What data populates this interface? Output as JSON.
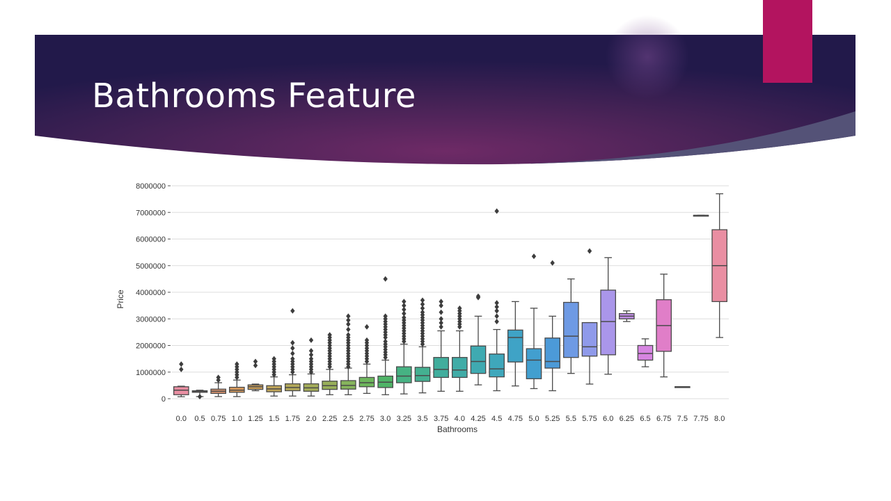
{
  "slide": {
    "title": "Bathrooms Feature",
    "colors": {
      "banner_dark": "#22194a",
      "banner_mid": "#6e2a66",
      "accent": "#b3145f",
      "swoosh": "#545277",
      "grid": "#dddddd",
      "box_edge": "#4a4a4a"
    }
  },
  "chart_data": {
    "type": "box",
    "xlabel": "Bathrooms",
    "ylabel": "Price",
    "ylim": [
      0,
      8000000
    ],
    "yticks": [
      0,
      1000000,
      2000000,
      3000000,
      4000000,
      5000000,
      6000000,
      7000000,
      8000000
    ],
    "grid": true,
    "legend": "none",
    "categories": [
      "0.0",
      "0.5",
      "0.75",
      "1.0",
      "1.25",
      "1.5",
      "1.75",
      "2.0",
      "2.25",
      "2.5",
      "2.75",
      "3.0",
      "3.25",
      "3.5",
      "3.75",
      "4.0",
      "4.25",
      "4.5",
      "4.75",
      "5.0",
      "5.25",
      "5.5",
      "5.75",
      "6.0",
      "6.25",
      "6.5",
      "6.75",
      "7.5",
      "7.75",
      "8.0"
    ],
    "boxes": [
      {
        "category": "0.0",
        "whisker_low": 75000,
        "q1": 150000,
        "median": 320000,
        "q3": 450000,
        "whisker_high": 470000,
        "outliers": [
          1100000,
          1300000
        ],
        "color": "#e98ea2"
      },
      {
        "category": "0.5",
        "whisker_low": 80000,
        "q1": 240000,
        "median": 270000,
        "q3": 300000,
        "whisker_high": 320000,
        "outliers": [
          80000
        ],
        "color": "#e58e8a"
      },
      {
        "category": "0.75",
        "whisker_low": 80000,
        "q1": 200000,
        "median": 280000,
        "q3": 360000,
        "whisker_high": 600000,
        "outliers": [
          700000,
          800000
        ],
        "color": "#dd9570"
      },
      {
        "category": "1.0",
        "whisker_low": 80000,
        "q1": 240000,
        "median": 320000,
        "q3": 430000,
        "whisker_high": 700000,
        "outliers": [
          800000,
          900000,
          1000000,
          1100000,
          1200000,
          1300000
        ],
        "color": "#d89a5c"
      },
      {
        "category": "1.25",
        "whisker_low": 300000,
        "q1": 350000,
        "median": 450000,
        "q3": 520000,
        "whisker_high": 550000,
        "outliers": [
          1250000,
          1400000
        ],
        "color": "#cca05a"
      },
      {
        "category": "1.5",
        "whisker_low": 100000,
        "q1": 260000,
        "median": 370000,
        "q3": 490000,
        "whisker_high": 820000,
        "outliers": [
          900000,
          1000000,
          1100000,
          1200000,
          1300000,
          1400000,
          1500000
        ],
        "color": "#bfa55a"
      },
      {
        "category": "1.75",
        "whisker_low": 100000,
        "q1": 300000,
        "median": 420000,
        "q3": 560000,
        "whisker_high": 900000,
        "outliers": [
          1000000,
          1100000,
          1200000,
          1300000,
          1400000,
          1500000,
          1700000,
          1900000,
          2100000,
          3300000
        ],
        "color": "#b3a95a"
      },
      {
        "category": "2.0",
        "whisker_low": 100000,
        "q1": 280000,
        "median": 410000,
        "q3": 560000,
        "whisker_high": 930000,
        "outliers": [
          1000000,
          1100000,
          1200000,
          1300000,
          1400000,
          1500000,
          1650000,
          1800000,
          2200000
        ],
        "color": "#a5ad5a"
      },
      {
        "category": "2.25",
        "whisker_low": 150000,
        "q1": 350000,
        "median": 490000,
        "q3": 660000,
        "whisker_high": 1100000,
        "outliers": [
          1200000,
          1300000,
          1400000,
          1500000,
          1600000,
          1700000,
          1800000,
          1900000,
          2000000,
          2100000,
          2200000,
          2300000,
          2400000
        ],
        "color": "#98af5a"
      },
      {
        "category": "2.5",
        "whisker_low": 150000,
        "q1": 360000,
        "median": 500000,
        "q3": 680000,
        "whisker_high": 1150000,
        "outliers": [
          1200000,
          1300000,
          1400000,
          1500000,
          1600000,
          1700000,
          1800000,
          1900000,
          2000000,
          2100000,
          2200000,
          2300000,
          2400000,
          2600000,
          2800000,
          2950000,
          3100000
        ],
        "color": "#86b45c"
      },
      {
        "category": "2.75",
        "whisker_low": 200000,
        "q1": 450000,
        "median": 600000,
        "q3": 800000,
        "whisker_high": 1300000,
        "outliers": [
          1400000,
          1500000,
          1600000,
          1700000,
          1800000,
          1900000,
          2000000,
          2100000,
          2200000,
          2700000
        ],
        "color": "#6db65c"
      },
      {
        "category": "3.0",
        "whisker_low": 150000,
        "q1": 420000,
        "median": 620000,
        "q3": 850000,
        "whisker_high": 1450000,
        "outliers": [
          1550000,
          1650000,
          1750000,
          1850000,
          1950000,
          2050000,
          2150000,
          2300000,
          2400000,
          2500000,
          2600000,
          2700000,
          2800000,
          2900000,
          3000000,
          3100000,
          4500000
        ],
        "color": "#4fb467"
      },
      {
        "category": "3.25",
        "whisker_low": 180000,
        "q1": 600000,
        "median": 850000,
        "q3": 1200000,
        "whisker_high": 2050000,
        "outliers": [
          2150000,
          2250000,
          2350000,
          2450000,
          2550000,
          2650000,
          2750000,
          2850000,
          2950000,
          3050000,
          3200000,
          3350000,
          3500000,
          3650000
        ],
        "color": "#46b283"
      },
      {
        "category": "3.5",
        "whisker_low": 220000,
        "q1": 650000,
        "median": 870000,
        "q3": 1180000,
        "whisker_high": 1950000,
        "outliers": [
          2050000,
          2150000,
          2250000,
          2350000,
          2450000,
          2550000,
          2650000,
          2750000,
          2850000,
          2950000,
          3050000,
          3150000,
          3250000,
          3400000,
          3550000,
          3700000
        ],
        "color": "#44b091"
      },
      {
        "category": "3.75",
        "whisker_low": 280000,
        "q1": 800000,
        "median": 1100000,
        "q3": 1550000,
        "whisker_high": 2550000,
        "outliers": [
          2700000,
          2850000,
          3000000,
          3250000,
          3500000,
          3650000
        ],
        "color": "#41ae9d"
      },
      {
        "category": "4.0",
        "whisker_low": 280000,
        "q1": 800000,
        "median": 1080000,
        "q3": 1550000,
        "whisker_high": 2550000,
        "outliers": [
          2700000,
          2800000,
          2900000,
          3000000,
          3100000,
          3200000,
          3300000,
          3400000
        ],
        "color": "#40aca7"
      },
      {
        "category": "4.25",
        "whisker_low": 520000,
        "q1": 950000,
        "median": 1400000,
        "q3": 1980000,
        "whisker_high": 3100000,
        "outliers": [
          3800000,
          3850000
        ],
        "color": "#3faab1"
      },
      {
        "category": "4.5",
        "whisker_low": 300000,
        "q1": 820000,
        "median": 1120000,
        "q3": 1680000,
        "whisker_high": 2600000,
        "outliers": [
          2900000,
          3100000,
          3300000,
          3450000,
          3600000,
          7050000
        ],
        "color": "#3fa7bb"
      },
      {
        "category": "4.75",
        "whisker_low": 480000,
        "q1": 1380000,
        "median": 2300000,
        "q3": 2580000,
        "whisker_high": 3650000,
        "outliers": [],
        "color": "#3fa3c6"
      },
      {
        "category": "5.0",
        "whisker_low": 380000,
        "q1": 750000,
        "median": 1450000,
        "q3": 1880000,
        "whisker_high": 3400000,
        "outliers": [
          5350000
        ],
        "color": "#429fcf"
      },
      {
        "category": "5.25",
        "whisker_low": 300000,
        "q1": 1150000,
        "median": 1400000,
        "q3": 2280000,
        "whisker_high": 3100000,
        "outliers": [
          5100000
        ],
        "color": "#4c9ad8"
      },
      {
        "category": "5.5",
        "whisker_low": 950000,
        "q1": 1550000,
        "median": 2350000,
        "q3": 3620000,
        "whisker_high": 4500000,
        "outliers": [],
        "color": "#6e9ae4"
      },
      {
        "category": "5.75",
        "whisker_low": 550000,
        "q1": 1600000,
        "median": 1950000,
        "q3": 2860000,
        "whisker_high": 2860000,
        "outliers": [
          5550000
        ],
        "color": "#8f9aea"
      },
      {
        "category": "6.0",
        "whisker_low": 920000,
        "q1": 1650000,
        "median": 2900000,
        "q3": 4080000,
        "whisker_high": 5300000,
        "outliers": [],
        "color": "#aa96ea"
      },
      {
        "category": "6.25",
        "whisker_low": 2900000,
        "q1": 3000000,
        "median": 3100000,
        "q3": 3200000,
        "whisker_high": 3300000,
        "outliers": [],
        "color": "#c28fe7"
      },
      {
        "category": "6.5",
        "whisker_low": 1200000,
        "q1": 1450000,
        "median": 1700000,
        "q3": 2000000,
        "whisker_high": 2250000,
        "outliers": [],
        "color": "#d685e1"
      },
      {
        "category": "6.75",
        "whisker_low": 820000,
        "q1": 1780000,
        "median": 2750000,
        "q3": 3720000,
        "whisker_high": 4680000,
        "outliers": [],
        "color": "#e07ec8"
      },
      {
        "category": "7.5",
        "whisker_low": 450000,
        "q1": 450000,
        "median": 450000,
        "q3": 450000,
        "whisker_high": 450000,
        "outliers": [],
        "color": "#e584b8"
      },
      {
        "category": "7.75",
        "whisker_low": 6890000,
        "q1": 6890000,
        "median": 6890000,
        "q3": 6890000,
        "whisker_high": 6890000,
        "outliers": [],
        "color": "#e88aab"
      },
      {
        "category": "8.0",
        "whisker_low": 2300000,
        "q1": 3650000,
        "median": 5000000,
        "q3": 6350000,
        "whisker_high": 7700000,
        "outliers": [],
        "color": "#e98ea2"
      }
    ]
  }
}
